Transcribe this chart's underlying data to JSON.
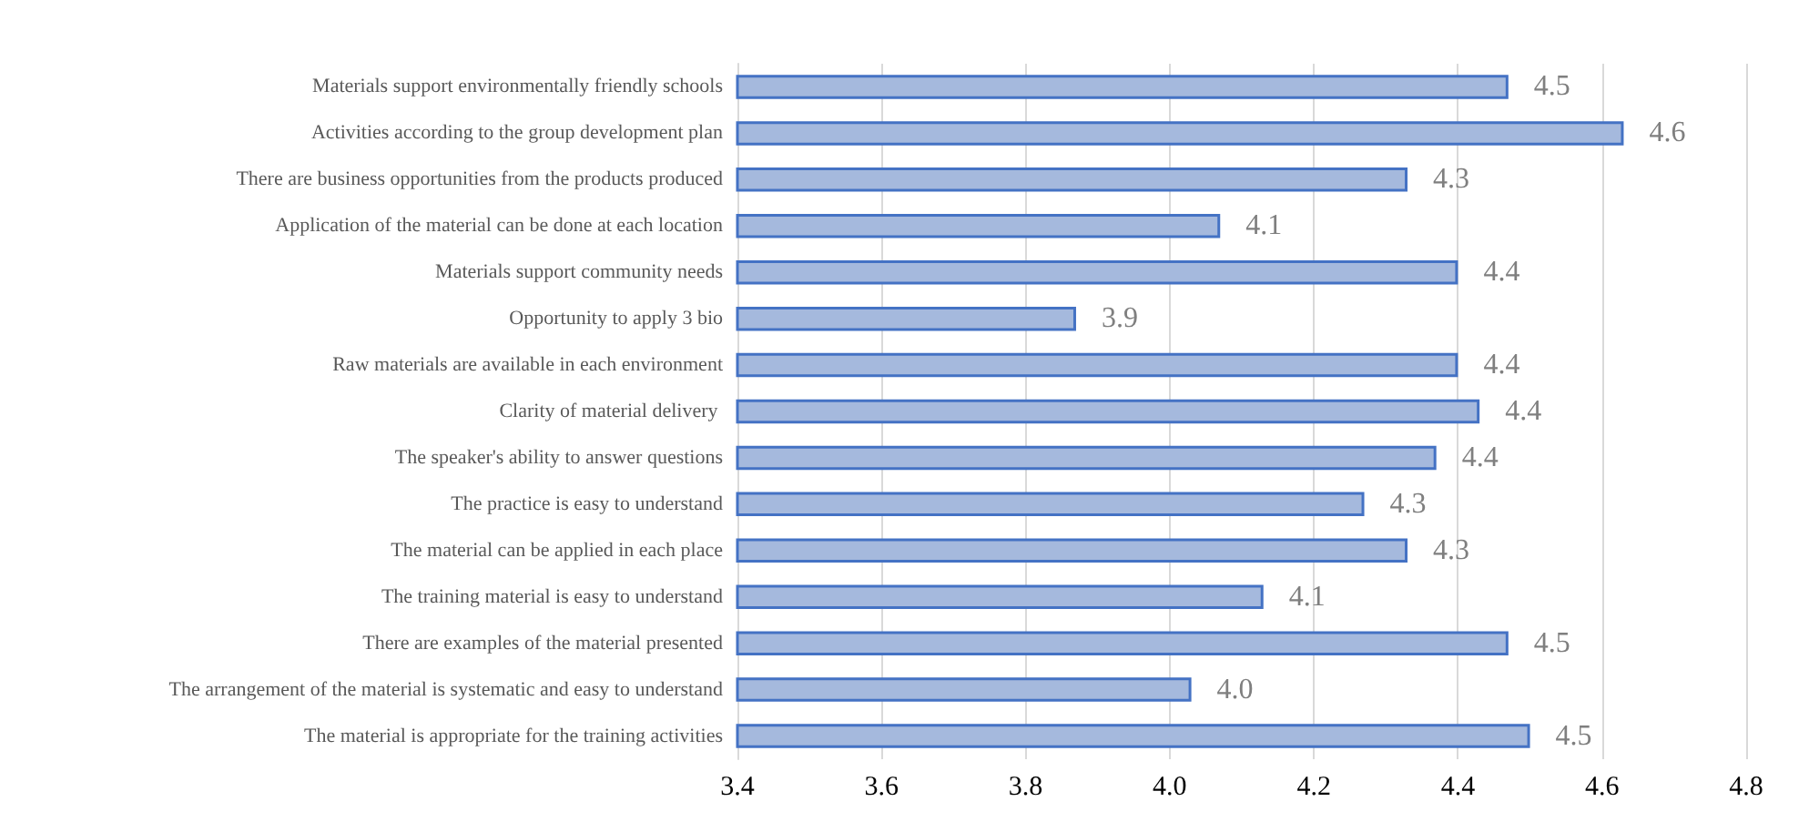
{
  "chart_data": {
    "type": "bar",
    "orientation": "horizontal",
    "categories": [
      "Materials support environmentally friendly schools",
      "Activities according to the group development plan",
      "There are business opportunities from the products produced",
      "Application of the material can be done at each location",
      "Materials support community needs",
      "Opportunity to apply 3 bio",
      "Raw materials are available in each environment",
      "Clarity of material delivery ",
      "The speaker's ability to answer questions",
      "The practice is easy to understand",
      "The material can be applied in each place",
      "The training material is easy to understand",
      "There are examples of the material presented",
      "The arrangement of the material is systematic and easy to understand",
      "The material is appropriate for the training activities"
    ],
    "values": [
      4.47,
      4.63,
      4.33,
      4.07,
      4.4,
      3.87,
      4.4,
      4.43,
      4.37,
      4.27,
      4.33,
      4.13,
      4.47,
      4.03,
      4.5
    ],
    "value_labels": [
      "4.5",
      "4.6",
      "4.3",
      "4.1",
      "4.4",
      "3.9",
      "4.4",
      "4.4",
      "4.4",
      "4.3",
      "4.3",
      "4.1",
      "4.5",
      "4.0",
      "4.5"
    ],
    "color": "#a5b9dd",
    "xlim": [
      3.4,
      4.8
    ],
    "xticks": [
      {
        "value": 3.4,
        "label": "3.4"
      },
      {
        "value": 3.6,
        "label": "3.6"
      },
      {
        "value": 3.8,
        "label": "3.8"
      },
      {
        "value": 4.0,
        "label": "4.0"
      },
      {
        "value": 4.2,
        "label": "4.2"
      },
      {
        "value": 4.4,
        "label": "4.4"
      },
      {
        "value": 4.6,
        "label": "4.6"
      },
      {
        "value": 4.8,
        "label": "4.8"
      }
    ],
    "grid": "x"
  }
}
